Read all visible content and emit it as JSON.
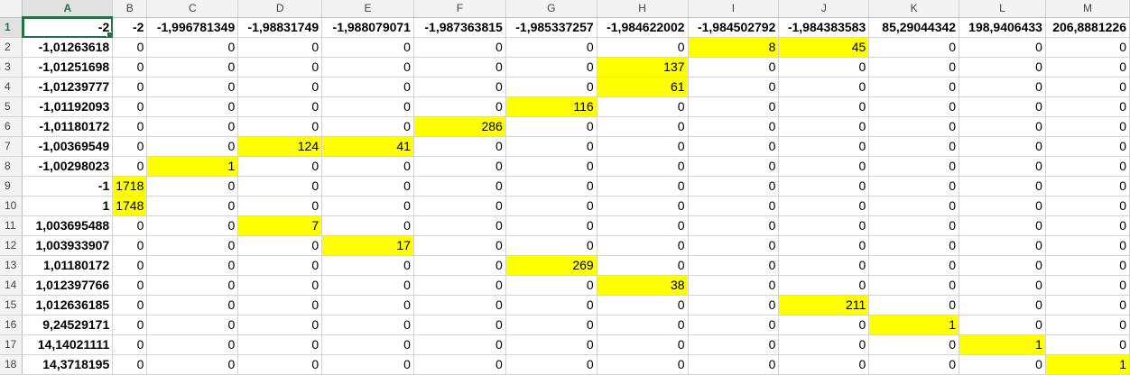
{
  "sheet": {
    "columns": [
      "A",
      "B",
      "C",
      "D",
      "E",
      "F",
      "G",
      "H",
      "I",
      "J",
      "K",
      "L",
      "M"
    ],
    "active_cell": "A1",
    "highlight_color": "#ffff00",
    "rows": [
      {
        "num": "1",
        "cells": [
          "-2",
          "-2",
          "-1,996781349",
          "-1,98831749",
          "-1,988079071",
          "-1,987363815",
          "-1,985337257",
          "-1,984622002",
          "-1,984502792",
          "-1,984383583",
          "85,29044342",
          "198,9406433",
          "206,8881226"
        ],
        "highlight": []
      },
      {
        "num": "2",
        "cells": [
          "-1,01263618",
          "0",
          "0",
          "0",
          "0",
          "0",
          "0",
          "0",
          "8",
          "45",
          "0",
          "0",
          "0"
        ],
        "highlight": [
          8,
          9
        ]
      },
      {
        "num": "3",
        "cells": [
          "-1,01251698",
          "0",
          "0",
          "0",
          "0",
          "0",
          "0",
          "137",
          "0",
          "0",
          "0",
          "0",
          "0"
        ],
        "highlight": [
          7
        ]
      },
      {
        "num": "4",
        "cells": [
          "-1,01239777",
          "0",
          "0",
          "0",
          "0",
          "0",
          "0",
          "61",
          "0",
          "0",
          "0",
          "0",
          "0"
        ],
        "highlight": [
          7
        ]
      },
      {
        "num": "5",
        "cells": [
          "-1,01192093",
          "0",
          "0",
          "0",
          "0",
          "0",
          "116",
          "0",
          "0",
          "0",
          "0",
          "0",
          "0"
        ],
        "highlight": [
          6
        ]
      },
      {
        "num": "6",
        "cells": [
          "-1,01180172",
          "0",
          "0",
          "0",
          "0",
          "286",
          "0",
          "0",
          "0",
          "0",
          "0",
          "0",
          "0"
        ],
        "highlight": [
          5
        ]
      },
      {
        "num": "7",
        "cells": [
          "-1,00369549",
          "0",
          "0",
          "124",
          "41",
          "0",
          "0",
          "0",
          "0",
          "0",
          "0",
          "0",
          "0"
        ],
        "highlight": [
          3,
          4
        ]
      },
      {
        "num": "8",
        "cells": [
          "-1,00298023",
          "0",
          "1",
          "0",
          "0",
          "0",
          "0",
          "0",
          "0",
          "0",
          "0",
          "0",
          "0"
        ],
        "highlight": [
          2
        ]
      },
      {
        "num": "9",
        "cells": [
          "-1",
          "1718",
          "0",
          "0",
          "0",
          "0",
          "0",
          "0",
          "0",
          "0",
          "0",
          "0",
          "0"
        ],
        "highlight": [
          1
        ]
      },
      {
        "num": "10",
        "cells": [
          "1",
          "1748",
          "0",
          "0",
          "0",
          "0",
          "0",
          "0",
          "0",
          "0",
          "0",
          "0",
          "0"
        ],
        "highlight": [
          1
        ]
      },
      {
        "num": "11",
        "cells": [
          "1,003695488",
          "0",
          "0",
          "7",
          "0",
          "0",
          "0",
          "0",
          "0",
          "0",
          "0",
          "0",
          "0"
        ],
        "highlight": [
          3
        ]
      },
      {
        "num": "12",
        "cells": [
          "1,003933907",
          "0",
          "0",
          "0",
          "17",
          "0",
          "0",
          "0",
          "0",
          "0",
          "0",
          "0",
          "0"
        ],
        "highlight": [
          4
        ]
      },
      {
        "num": "13",
        "cells": [
          "1,01180172",
          "0",
          "0",
          "0",
          "0",
          "0",
          "269",
          "0",
          "0",
          "0",
          "0",
          "0",
          "0"
        ],
        "highlight": [
          6
        ]
      },
      {
        "num": "14",
        "cells": [
          "1,012397766",
          "0",
          "0",
          "0",
          "0",
          "0",
          "0",
          "38",
          "0",
          "0",
          "0",
          "0",
          "0"
        ],
        "highlight": [
          7
        ]
      },
      {
        "num": "15",
        "cells": [
          "1,012636185",
          "0",
          "0",
          "0",
          "0",
          "0",
          "0",
          "0",
          "0",
          "211",
          "0",
          "0",
          "0"
        ],
        "highlight": [
          9
        ]
      },
      {
        "num": "16",
        "cells": [
          "9,24529171",
          "0",
          "0",
          "0",
          "0",
          "0",
          "0",
          "0",
          "0",
          "0",
          "1",
          "0",
          "0"
        ],
        "highlight": [
          10
        ]
      },
      {
        "num": "17",
        "cells": [
          "14,14021111",
          "0",
          "0",
          "0",
          "0",
          "0",
          "0",
          "0",
          "0",
          "0",
          "0",
          "1",
          "0"
        ],
        "highlight": [
          11
        ]
      },
      {
        "num": "18",
        "cells": [
          "14,3718195",
          "0",
          "0",
          "0",
          "0",
          "0",
          "0",
          "0",
          "0",
          "0",
          "0",
          "0",
          "1"
        ],
        "highlight": [
          12
        ]
      }
    ]
  }
}
